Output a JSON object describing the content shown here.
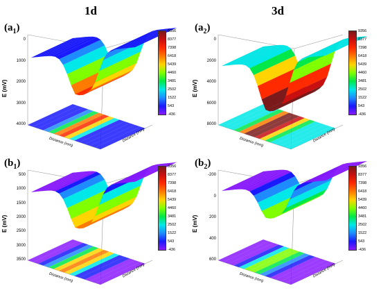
{
  "chart_data": [
    {
      "type": "surface",
      "panel_label": "a",
      "panel_sub": "1",
      "column_title": "1d",
      "zlabel": "E (mV)",
      "xlabel": "Distance (mm)",
      "ylabel": "Distance (mm)",
      "ztick_labels": [
        "0",
        "1000",
        "2000",
        "3000",
        "4000"
      ],
      "colorbar_ticks": [
        "9356",
        "8377",
        "7398",
        "6418",
        "5439",
        "4460",
        "3481",
        "2502",
        "1522",
        "543",
        "-436"
      ],
      "z_direction": "down",
      "trough_depth": 0.72,
      "plateau_level": 0.05
    },
    {
      "type": "surface",
      "panel_label": "a",
      "panel_sub": "2",
      "column_title": "3d",
      "zlabel": "E (mV)",
      "xlabel": "Distance (mm)",
      "ylabel": "Distance (mm)",
      "ztick_labels": [
        "0",
        "2000",
        "4000",
        "6000",
        "8000"
      ],
      "colorbar_ticks": [
        "9356",
        "8377",
        "7398",
        "6418",
        "5439",
        "4460",
        "3481",
        "2502",
        "1522",
        "543",
        "-436"
      ],
      "z_direction": "down",
      "trough_depth": 0.85,
      "plateau_level": 0.25
    },
    {
      "type": "surface",
      "panel_label": "b",
      "panel_sub": "1",
      "column_title": "",
      "zlabel": "E (mV)",
      "xlabel": "Distance (mm)",
      "ylabel": "Distance (mm)",
      "ztick_labels": [
        "500",
        "1000",
        "1500",
        "2000",
        "2500",
        "3000",
        "3500"
      ],
      "colorbar_ticks": [
        "9356",
        "8377",
        "7398",
        "6418",
        "5439",
        "4460",
        "3481",
        "2502",
        "1522",
        "543",
        "-436"
      ],
      "z_direction": "down",
      "trough_depth": 0.7,
      "plateau_level": 0.03
    },
    {
      "type": "surface",
      "panel_label": "b",
      "panel_sub": "2",
      "column_title": "",
      "zlabel": "E (mV)",
      "xlabel": "Distance (mm)",
      "ylabel": "Distance (mm)",
      "ztick_labels": [
        "-200",
        "0",
        "200",
        "400",
        "600"
      ],
      "colorbar_ticks": [
        "9356",
        "8377",
        "7398",
        "6418",
        "5439",
        "4460",
        "3481",
        "2502",
        "1522",
        "543",
        "-436"
      ],
      "z_direction": "down",
      "trough_depth": 0.55,
      "plateau_level": 0.0
    }
  ],
  "column_titles": [
    "1d",
    "3d"
  ],
  "colors": {
    "scale": [
      "#7a1a1a",
      "#c81010",
      "#ff2a00",
      "#ff7a00",
      "#ffd400",
      "#80ff00",
      "#00e84a",
      "#00e8e8",
      "#1e8cff",
      "#1a1aff",
      "#8a1aff"
    ]
  }
}
